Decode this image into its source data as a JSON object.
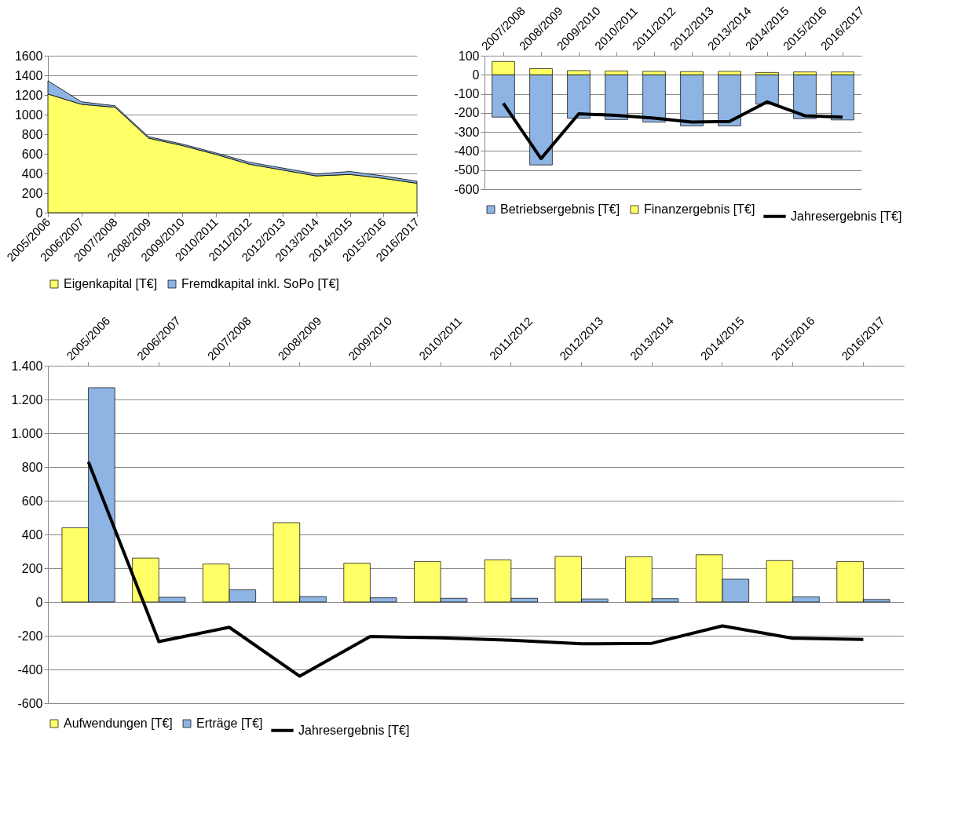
{
  "chart_data": [
    {
      "type": "area",
      "stacked": true,
      "categories": [
        "2005/2006",
        "2006/2007",
        "2007/2008",
        "2008/2009",
        "2009/2010",
        "2010/2011",
        "2011/2012",
        "2012/2013",
        "2013/2014",
        "2014/2015",
        "2015/2016",
        "2016/2017"
      ],
      "series": [
        {
          "name": "Eigenkapital [T€]",
          "color": "#ffff66",
          "values": [
            1210,
            1105,
            1075,
            760,
            685,
            595,
            495,
            435,
            375,
            390,
            350,
            300
          ]
        },
        {
          "name": "Fremdkapital inkl. SoPo [T€]",
          "color": "#8db4e2",
          "values": [
            135,
            25,
            15,
            15,
            15,
            15,
            20,
            20,
            20,
            30,
            25,
            20
          ]
        }
      ],
      "ylim": [
        0,
        1600
      ],
      "yticks": [
        0,
        200,
        400,
        600,
        800,
        1000,
        1200,
        1400,
        1600
      ],
      "grid": "y",
      "legend": "bottom"
    },
    {
      "type": "bar",
      "stacked": true,
      "categories": [
        "2007/2008",
        "2008/2009",
        "2009/2010",
        "2010/2011",
        "2011/2012",
        "2012/2013",
        "2013/2014",
        "2014/2015",
        "2015/2016",
        "2016/2017"
      ],
      "series": [
        {
          "name": "Betriebsergebnis [T€]",
          "color": "#8db4e2",
          "values": [
            -222,
            -473,
            -228,
            -235,
            -248,
            -268,
            -268,
            -154,
            -230,
            -237
          ]
        },
        {
          "name": "Finanzergebnis [T€]",
          "color": "#ffff66",
          "values": [
            70,
            32,
            22,
            20,
            18,
            17,
            18,
            12,
            15,
            15
          ]
        },
        {
          "name": "Jahresergebnis [T€]",
          "type": "line",
          "color": "#000000",
          "values": [
            -150,
            -440,
            -205,
            -213,
            -227,
            -248,
            -245,
            -142,
            -215,
            -222
          ]
        }
      ],
      "ylim": [
        -600,
        100
      ],
      "yticks": [
        -600,
        -500,
        -400,
        -300,
        -200,
        -100,
        0,
        100
      ],
      "grid": "y",
      "legend": "bottom"
    },
    {
      "type": "bar",
      "categories": [
        "2005/2006",
        "2006/2007",
        "2007/2008",
        "2008/2009",
        "2009/2010",
        "2010/2011",
        "2011/2012",
        "2012/2013",
        "2013/2014",
        "2014/2015",
        "2015/2016",
        "2016/2017"
      ],
      "series": [
        {
          "name": "Aufwendungen [T€]",
          "color": "#ffff66",
          "values": [
            440,
            260,
            225,
            470,
            230,
            240,
            250,
            270,
            268,
            280,
            245,
            240
          ]
        },
        {
          "name": "Erträge [T€]",
          "color": "#8db4e2",
          "values": [
            1270,
            28,
            72,
            32,
            25,
            22,
            22,
            18,
            20,
            135,
            30,
            15
          ]
        },
        {
          "name": "Jahresergebnis [T€]",
          "type": "line",
          "color": "#000000",
          "values": [
            830,
            -235,
            -150,
            -440,
            -205,
            -213,
            -227,
            -248,
            -245,
            -142,
            -215,
            -222
          ]
        }
      ],
      "ylim": [
        -600,
        1400
      ],
      "yticks": [
        -600,
        -400,
        -200,
        0,
        200,
        400,
        600,
        800,
        {
          "value": 1000,
          "label": "1.000"
        },
        {
          "value": 1200,
          "label": "1.200"
        },
        {
          "value": 1400,
          "label": "1.400"
        }
      ],
      "grid": "y",
      "legend": "bottom"
    }
  ]
}
